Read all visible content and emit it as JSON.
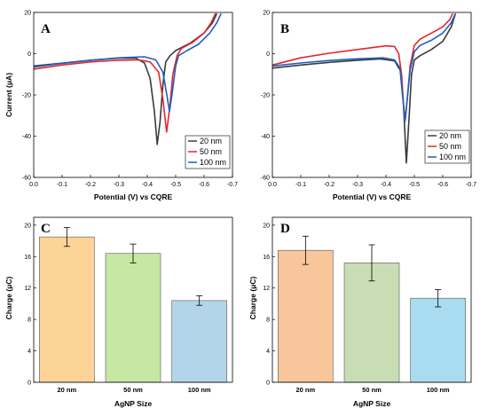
{
  "chart_data": [
    {
      "id": "A",
      "type": "line",
      "panel_label": "A",
      "xlabel": "Potential (V) vs CQRE",
      "ylabel": "Current (μA)",
      "xlim": [
        0.0,
        -0.7
      ],
      "ylim": [
        -60,
        20
      ],
      "xticks": [
        0.0,
        -0.1,
        -0.2,
        -0.3,
        -0.4,
        -0.5,
        -0.6,
        -0.7
      ],
      "yticks": [
        -60,
        -40,
        -20,
        0,
        20
      ],
      "xtick_labels": [
        "0.0",
        "-0.1",
        "-0.2",
        "-0.3",
        "-0.4",
        "-0.5",
        "-0.6",
        "-0.7"
      ],
      "ytick_labels": [
        "-60",
        "-40",
        "-20",
        "0",
        "20"
      ],
      "legend_position": "lower-right",
      "series": [
        {
          "name": "20 nm",
          "color": "#3a3a3a",
          "points": [
            [
              0.0,
              -6
            ],
            [
              -0.1,
              -4.6
            ],
            [
              -0.2,
              -3.2
            ],
            [
              -0.3,
              -2.2
            ],
            [
              -0.36,
              -2.2
            ],
            [
              -0.39,
              -4.5
            ],
            [
              -0.41,
              -12
            ],
            [
              -0.425,
              -28
            ],
            [
              -0.435,
              -44
            ],
            [
              -0.445,
              -33
            ],
            [
              -0.455,
              -15
            ],
            [
              -0.465,
              -4
            ],
            [
              -0.48,
              -1
            ],
            [
              -0.5,
              1.5
            ],
            [
              -0.55,
              5
            ],
            [
              -0.6,
              10
            ],
            [
              -0.63,
              15
            ],
            [
              -0.645,
              19.5
            ]
          ]
        },
        {
          "name": "50 nm",
          "color": "#e8242c",
          "points": [
            [
              0.0,
              -7.5
            ],
            [
              -0.1,
              -5.5
            ],
            [
              -0.2,
              -4
            ],
            [
              -0.3,
              -3.2
            ],
            [
              -0.37,
              -3
            ],
            [
              -0.41,
              -4
            ],
            [
              -0.44,
              -9
            ],
            [
              -0.455,
              -22
            ],
            [
              -0.468,
              -38
            ],
            [
              -0.48,
              -25
            ],
            [
              -0.49,
              -10
            ],
            [
              -0.505,
              -1
            ],
            [
              -0.52,
              2.5
            ],
            [
              -0.56,
              5.5
            ],
            [
              -0.6,
              10
            ],
            [
              -0.625,
              15
            ],
            [
              -0.64,
              19.5
            ]
          ]
        },
        {
          "name": "100 nm",
          "color": "#1f5fbf",
          "points": [
            [
              0.0,
              -6.5
            ],
            [
              -0.1,
              -4.7
            ],
            [
              -0.2,
              -3.2
            ],
            [
              -0.3,
              -2
            ],
            [
              -0.39,
              -1.5
            ],
            [
              -0.43,
              -3
            ],
            [
              -0.455,
              -9
            ],
            [
              -0.47,
              -21
            ],
            [
              -0.478,
              -28
            ],
            [
              -0.487,
              -20
            ],
            [
              -0.5,
              -6
            ],
            [
              -0.51,
              -1
            ],
            [
              -0.54,
              1.5
            ],
            [
              -0.58,
              4.5
            ],
            [
              -0.62,
              10
            ],
            [
              -0.645,
              15
            ],
            [
              -0.66,
              19.5
            ]
          ]
        }
      ]
    },
    {
      "id": "B",
      "type": "line",
      "panel_label": "B",
      "xlabel": "Potential (V) vs CQRE",
      "ylabel": "",
      "xlim": [
        0.0,
        -0.7
      ],
      "ylim": [
        -60,
        20
      ],
      "xticks": [
        0.0,
        -0.1,
        -0.2,
        -0.3,
        -0.4,
        -0.5,
        -0.6,
        -0.7
      ],
      "yticks": [
        -60,
        -40,
        -20,
        0,
        20
      ],
      "xtick_labels": [
        "0.0",
        "-0.1",
        "-0.2",
        "-0.3",
        "-0.4",
        "-0.5",
        "-0.6",
        "-0.7"
      ],
      "ytick_labels": [
        "-60",
        "-40",
        "-20",
        "0",
        "20"
      ],
      "legend_position": "lower-right",
      "series": [
        {
          "name": "20 nm",
          "color": "#3a3a3a",
          "points": [
            [
              0.0,
              -7
            ],
            [
              -0.1,
              -5.5
            ],
            [
              -0.2,
              -4.2
            ],
            [
              -0.3,
              -3.2
            ],
            [
              -0.38,
              -2.6
            ],
            [
              -0.43,
              -3.5
            ],
            [
              -0.45,
              -8
            ],
            [
              -0.462,
              -25
            ],
            [
              -0.472,
              -53
            ],
            [
              -0.482,
              -30
            ],
            [
              -0.49,
              -10
            ],
            [
              -0.5,
              -3
            ],
            [
              -0.52,
              -1
            ],
            [
              -0.56,
              2
            ],
            [
              -0.6,
              6
            ],
            [
              -0.63,
              13
            ],
            [
              -0.645,
              19.5
            ]
          ]
        },
        {
          "name": "50 nm",
          "color": "#e8242c",
          "points": [
            [
              0.0,
              -5.5
            ],
            [
              -0.1,
              -2
            ],
            [
              -0.2,
              0.2
            ],
            [
              -0.3,
              2
            ],
            [
              -0.4,
              3.8
            ],
            [
              -0.43,
              3.5
            ],
            [
              -0.445,
              0
            ],
            [
              -0.455,
              -10
            ],
            [
              -0.462,
              -25
            ],
            [
              -0.468,
              -32
            ],
            [
              -0.475,
              -22
            ],
            [
              -0.485,
              -6
            ],
            [
              -0.5,
              4
            ],
            [
              -0.52,
              7
            ],
            [
              -0.56,
              10
            ],
            [
              -0.6,
              13
            ],
            [
              -0.625,
              16.5
            ],
            [
              -0.635,
              19.5
            ]
          ]
        },
        {
          "name": "100 nm",
          "color": "#1f5fbf",
          "points": [
            [
              0.0,
              -6
            ],
            [
              -0.1,
              -4.5
            ],
            [
              -0.2,
              -3.3
            ],
            [
              -0.3,
              -2.5
            ],
            [
              -0.39,
              -2
            ],
            [
              -0.43,
              -3
            ],
            [
              -0.45,
              -7
            ],
            [
              -0.46,
              -22
            ],
            [
              -0.467,
              -33
            ],
            [
              -0.475,
              -22
            ],
            [
              -0.485,
              -8
            ],
            [
              -0.5,
              1
            ],
            [
              -0.52,
              4
            ],
            [
              -0.56,
              6.5
            ],
            [
              -0.6,
              10
            ],
            [
              -0.63,
              15
            ],
            [
              -0.645,
              19.5
            ]
          ]
        }
      ]
    },
    {
      "id": "C",
      "type": "bar",
      "panel_label": "C",
      "xlabel": "AgNP Size",
      "ylabel": "Charge (μC)",
      "ylim": [
        0,
        21
      ],
      "yticks": [
        0,
        4,
        8,
        12,
        16,
        20
      ],
      "ytick_labels": [
        "0",
        "4",
        "8",
        "12",
        "16",
        "20"
      ],
      "categories": [
        "20 nm",
        "50 nm",
        "100 nm"
      ],
      "values": [
        18.5,
        16.4,
        10.4
      ],
      "errors": [
        1.2,
        1.2,
        0.6
      ],
      "colors": [
        "#fdd498",
        "#c5e8a4",
        "#b3d5ea"
      ]
    },
    {
      "id": "D",
      "type": "bar",
      "panel_label": "D",
      "xlabel": "AgNP Size",
      "ylabel": "Charge (μC)",
      "ylim": [
        0,
        21
      ],
      "yticks": [
        0,
        4,
        8,
        12,
        16,
        20
      ],
      "ytick_labels": [
        "0",
        "4",
        "8",
        "12",
        "16",
        "20"
      ],
      "categories": [
        "20 nm",
        "50 nm",
        "100 nm"
      ],
      "values": [
        16.8,
        15.2,
        10.7
      ],
      "errors": [
        1.8,
        2.3,
        1.1
      ],
      "colors": [
        "#f8c69a",
        "#c8ddb4",
        "#a9dcf1"
      ]
    }
  ]
}
